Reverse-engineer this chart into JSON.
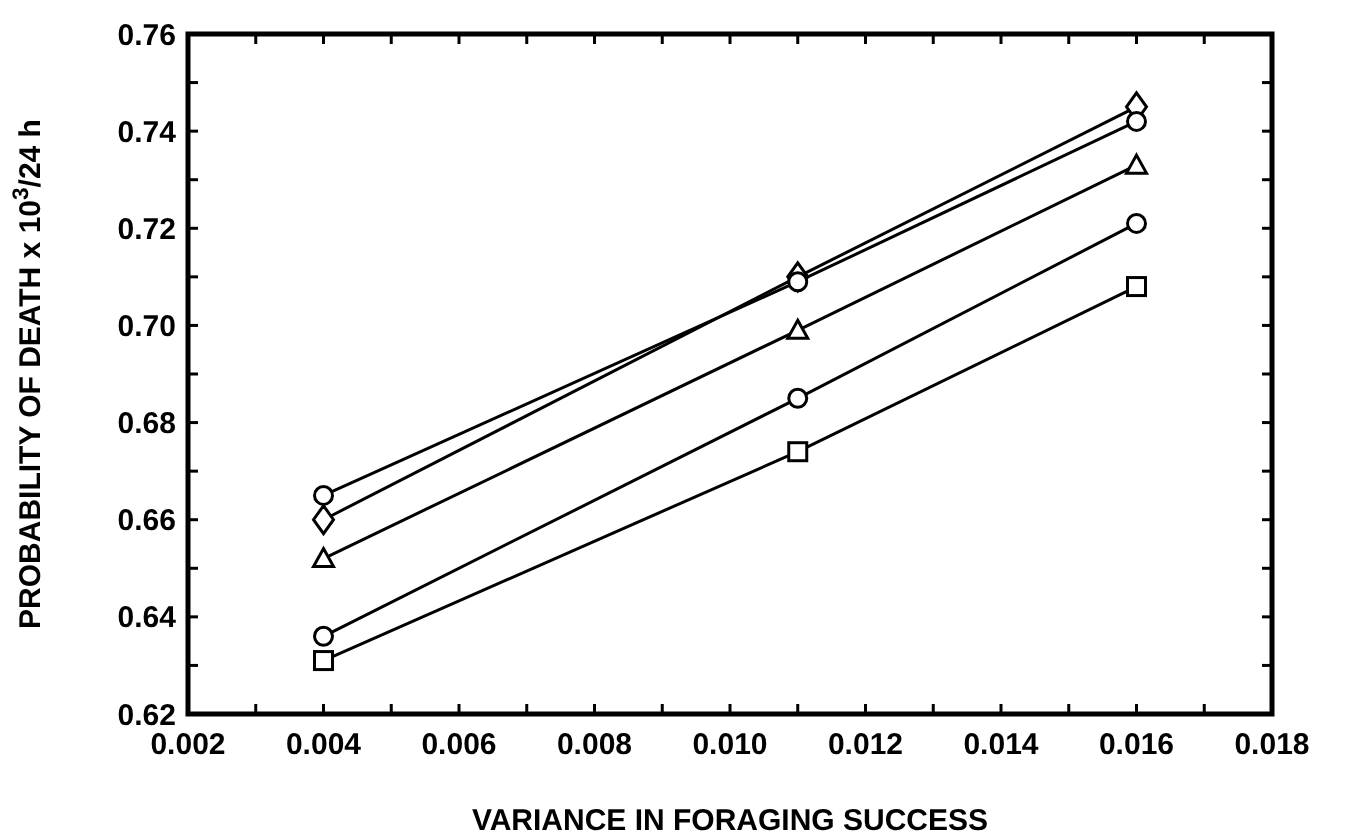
{
  "chart_data": {
    "type": "line",
    "xlabel": "VARIANCE IN FORAGING SUCCESS",
    "ylabel": "PROBABILITY OF DEATH x 10$^{3}$/24 h",
    "x": [
      0.004,
      0.011,
      0.016
    ],
    "series": [
      {
        "color": "#000000",
        "marker": "diamond",
        "values": [
          0.66,
          0.71,
          0.745
        ]
      },
      {
        "color": "#000000",
        "marker": "circle",
        "values": [
          0.665,
          0.709,
          0.742
        ]
      },
      {
        "color": "#000000",
        "marker": "triangle",
        "values": [
          0.652,
          0.699,
          0.733
        ]
      },
      {
        "color": "#000000",
        "marker": "circle",
        "values": [
          0.636,
          0.685,
          0.721
        ]
      },
      {
        "color": "#000000",
        "marker": "square",
        "values": [
          0.631,
          0.674,
          0.708
        ]
      }
    ],
    "xlim": [
      0.002,
      0.018
    ],
    "xticks": [
      0.002,
      {
        "value": 0.003,
        "label": null
      },
      0.004,
      {
        "value": 0.005,
        "label": null
      },
      0.006,
      {
        "value": 0.007,
        "label": null
      },
      0.008,
      {
        "value": 0.009,
        "label": null
      },
      {
        "value": 0.01,
        "label": "0.010"
      },
      {
        "value": 0.011,
        "label": null
      },
      0.012,
      {
        "value": 0.013,
        "label": null
      },
      0.014,
      {
        "value": 0.015,
        "label": null
      },
      0.016,
      {
        "value": 0.017,
        "label": null
      },
      0.018
    ],
    "ylim": [
      0.62,
      0.76
    ],
    "yticks": [
      0.62,
      {
        "value": 0.63,
        "label": null
      },
      0.64,
      {
        "value": 0.65,
        "label": null
      },
      0.66,
      {
        "value": 0.67,
        "label": null
      },
      0.68,
      {
        "value": 0.69,
        "label": null
      },
      {
        "value": 0.7,
        "label": "0.70"
      },
      {
        "value": 0.71,
        "label": null
      },
      0.72,
      {
        "value": 0.73,
        "label": null
      },
      0.74,
      {
        "value": 0.75,
        "label": null
      },
      0.76
    ],
    "grid": false,
    "line_style": "solid"
  }
}
